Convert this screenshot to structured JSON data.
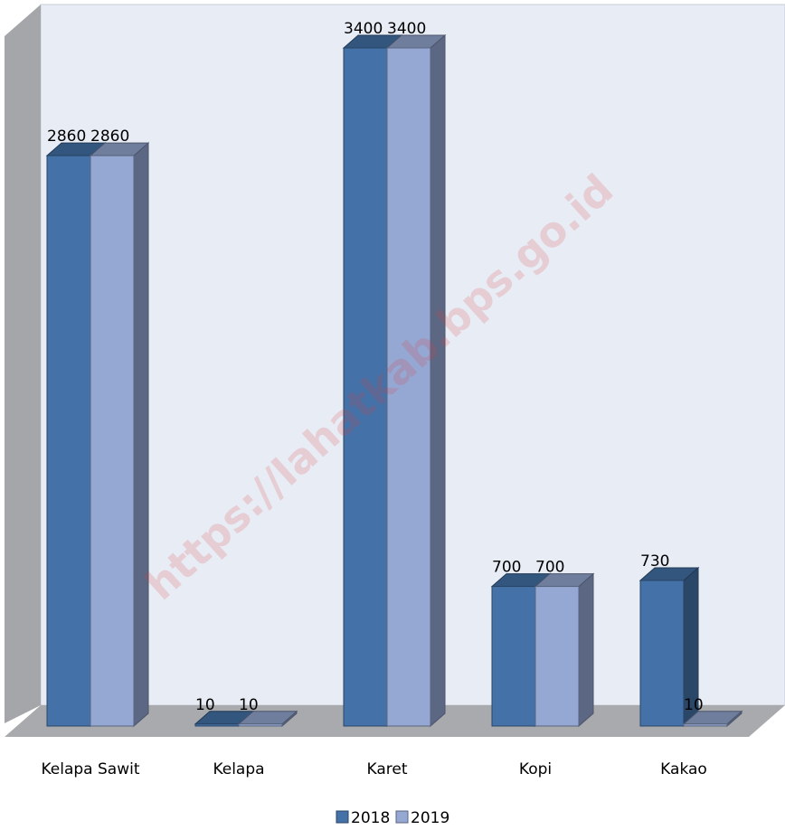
{
  "chart_data": {
    "type": "bar3d",
    "categories": [
      "Kelapa Sawit",
      "Kelapa",
      "Karet",
      "Kopi",
      "Kakao"
    ],
    "series": [
      {
        "name": "2018",
        "color": "#4472a8",
        "values": [
          2860,
          10,
          3400,
          700,
          730
        ]
      },
      {
        "name": "2019",
        "color": "#95a8d3",
        "values": [
          2860,
          10,
          3400,
          700,
          10
        ]
      }
    ],
    "watermark": "https://lahatkab.bps.go.id",
    "legend": "bottom"
  }
}
